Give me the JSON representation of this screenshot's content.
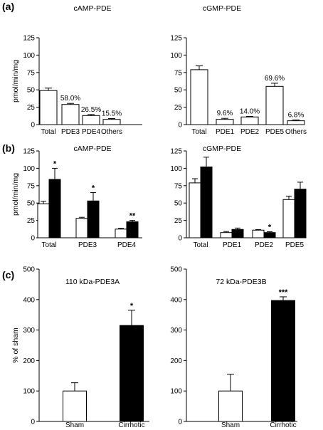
{
  "chart_data": [
    {
      "panel": "(a)",
      "type": "bar",
      "title": "cAMP-PDE",
      "ylabel": "pmol/min/mg",
      "ylim": [
        0,
        125
      ],
      "yticks": [
        "0",
        "25",
        "50",
        "75",
        "100",
        "125"
      ],
      "categories": [
        "Total",
        "PDE3",
        "PDE4",
        "Others"
      ],
      "values": [
        49,
        29,
        13,
        7.5
      ],
      "errors": [
        3.5,
        1.5,
        1.5,
        1.2
      ],
      "labels": [
        "",
        "58.0%",
        "26.5%",
        "15.5%"
      ]
    },
    {
      "panel": "",
      "type": "bar",
      "title": "cGMP-PDE",
      "ylabel": "",
      "ylim": [
        0,
        125
      ],
      "yticks": [
        "0",
        "25",
        "50",
        "75",
        "100",
        "125"
      ],
      "categories": [
        "Total",
        "PDE1",
        "PDE2",
        "PDE5",
        "Others"
      ],
      "values": [
        79,
        7.5,
        11,
        55,
        5.5
      ],
      "errors": [
        5.5,
        1.5,
        0.8,
        4.5,
        1.2
      ],
      "labels": [
        "",
        "9.6%",
        "14.0%",
        "69.6%",
        "6.8%"
      ]
    },
    {
      "panel": "(b)",
      "type": "bar",
      "title": "cAMP-PDE",
      "ylabel": "pmol/min/mg",
      "ylim": [
        0,
        125
      ],
      "yticks": [
        "0",
        "25",
        "50",
        "75",
        "100",
        "125"
      ],
      "categories": [
        "Total",
        "PDE3",
        "PDE4"
      ],
      "series": [
        {
          "values": [
            49,
            28,
            12.5
          ],
          "errors": [
            3.5,
            1.5,
            1.2
          ]
        },
        {
          "values": [
            84,
            53,
            23
          ],
          "errors": [
            16,
            12,
            2
          ]
        }
      ],
      "annotations": [
        "*",
        "*",
        "**"
      ]
    },
    {
      "panel": "",
      "type": "bar",
      "title": "cGMP-PDE",
      "ylabel": "",
      "ylim": [
        0,
        125
      ],
      "yticks": [
        "0",
        "25",
        "50",
        "75",
        "100",
        "125"
      ],
      "categories": [
        "Total",
        "PDE1",
        "PDE2",
        "PDE5"
      ],
      "series": [
        {
          "values": [
            79,
            7.5,
            11,
            55
          ],
          "errors": [
            6,
            1.5,
            0.8,
            5
          ]
        },
        {
          "values": [
            102,
            12,
            7.5,
            70
          ],
          "errors": [
            14,
            2,
            1.2,
            10
          ]
        }
      ],
      "annotations": [
        "",
        "",
        "*",
        ""
      ]
    },
    {
      "panel": "(c)",
      "type": "bar",
      "title": "110 kDa-PDE3A",
      "ylabel": "% of sham",
      "ylim": [
        0,
        500
      ],
      "yticks": [
        "0",
        "100",
        "200",
        "300",
        "400",
        "500"
      ],
      "categories": [
        "Sham",
        "Cirrhotic"
      ],
      "values": [
        100,
        315
      ],
      "errors": [
        27,
        50
      ],
      "annotations": [
        "",
        "*"
      ]
    },
    {
      "panel": "",
      "type": "bar",
      "title": "72 kDa-PDE3B",
      "ylabel": "",
      "ylim": [
        0,
        500
      ],
      "yticks": [
        "0",
        "100",
        "200",
        "300",
        "400",
        "500"
      ],
      "categories": [
        "Sham",
        "Cirrhotic"
      ],
      "values": [
        100,
        397
      ],
      "errors": [
        55,
        12
      ],
      "annotations": [
        "",
        "***"
      ]
    }
  ]
}
